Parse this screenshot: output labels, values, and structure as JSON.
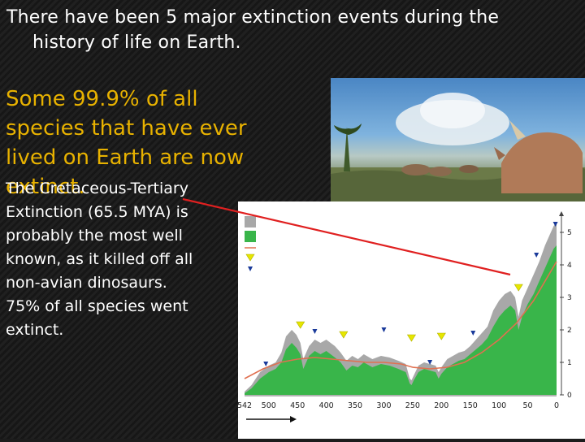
{
  "slide": {
    "title_line1": "There have been 5 major extinction events during the",
    "title_line2": "history of life on Earth.",
    "headline_lines": [
      "Some 99.9% of all",
      "species that have ever",
      "lived on Earth are now",
      "extinct."
    ],
    "body_lines": [
      "The Cretaceous-Tertiary",
      "Extinction (65.5 MYA) is",
      "probably the most well",
      "known, as it killed off all",
      "non-avian dinosaurs.",
      "75% of all species went",
      "extinct."
    ]
  },
  "colors": {
    "background": "#1c1c1c",
    "title_text": "#ffffff",
    "headline_text": "#e8b200",
    "body_text": "#ffffff",
    "connector_line": "#e02020",
    "chart_gray": "#a8a8a8",
    "chart_green": "#39b54a",
    "trend_line": "#e07050",
    "major_marker": "#e6e600",
    "minor_marker": "#1a3a9a"
  },
  "chart_data": {
    "type": "area",
    "x_ticks": [
      "542",
      "500",
      "450",
      "400",
      "350",
      "300",
      "250",
      "200",
      "150",
      "100",
      "50",
      "0"
    ],
    "y_ticks": [
      "0",
      "1",
      "2",
      "3",
      "4",
      "5"
    ],
    "xlim": [
      542,
      0
    ],
    "ylim": [
      0,
      5.5
    ],
    "legend": "left",
    "series": [
      {
        "color": "gray",
        "x": [
          542,
          530,
          515,
          500,
          488,
          478,
          470,
          460,
          452,
          445,
          440,
          430,
          420,
          410,
          400,
          385,
          375,
          365,
          355,
          345,
          335,
          320,
          305,
          290,
          275,
          262,
          255,
          252,
          248,
          240,
          230,
          220,
          210,
          205,
          200,
          190,
          180,
          170,
          160,
          150,
          140,
          130,
          120,
          110,
          100,
          90,
          80,
          72,
          66,
          60,
          50,
          40,
          30,
          20,
          10,
          5,
          0
        ],
        "values": [
          0.1,
          0.3,
          0.7,
          0.9,
          1.0,
          1.3,
          1.8,
          2.0,
          1.85,
          1.6,
          1.1,
          1.5,
          1.7,
          1.6,
          1.7,
          1.5,
          1.3,
          1.05,
          1.2,
          1.1,
          1.25,
          1.1,
          1.2,
          1.15,
          1.05,
          0.95,
          0.5,
          0.45,
          0.6,
          0.9,
          1.0,
          0.95,
          0.9,
          0.7,
          0.85,
          1.1,
          1.2,
          1.3,
          1.35,
          1.5,
          1.7,
          1.9,
          2.1,
          2.6,
          2.9,
          3.1,
          3.2,
          3.0,
          2.4,
          2.9,
          3.3,
          3.7,
          4.1,
          4.6,
          5.0,
          5.2,
          5.3
        ]
      },
      {
        "color": "green",
        "x": [
          542,
          530,
          515,
          500,
          488,
          478,
          470,
          460,
          452,
          445,
          440,
          430,
          420,
          410,
          400,
          385,
          375,
          365,
          355,
          345,
          335,
          320,
          305,
          290,
          275,
          262,
          255,
          252,
          248,
          240,
          230,
          220,
          210,
          205,
          200,
          190,
          180,
          170,
          160,
          150,
          140,
          130,
          120,
          110,
          100,
          90,
          80,
          72,
          66,
          60,
          50,
          40,
          30,
          20,
          10,
          5,
          0
        ],
        "values": [
          0.05,
          0.2,
          0.5,
          0.7,
          0.8,
          1.0,
          1.4,
          1.6,
          1.45,
          1.25,
          0.8,
          1.2,
          1.35,
          1.25,
          1.35,
          1.15,
          1.0,
          0.75,
          0.9,
          0.85,
          1.0,
          0.85,
          0.95,
          0.9,
          0.8,
          0.7,
          0.35,
          0.3,
          0.45,
          0.7,
          0.8,
          0.75,
          0.7,
          0.5,
          0.65,
          0.85,
          0.95,
          1.05,
          1.1,
          1.25,
          1.4,
          1.55,
          1.75,
          2.1,
          2.4,
          2.6,
          2.75,
          2.6,
          2.0,
          2.4,
          2.8,
          3.1,
          3.5,
          3.9,
          4.3,
          4.5,
          4.6
        ]
      },
      {
        "color": "trend",
        "x": [
          542,
          510,
          480,
          450,
          420,
          390,
          360,
          330,
          300,
          270,
          250,
          220,
          190,
          160,
          130,
          100,
          70,
          40,
          10,
          0
        ],
        "values": [
          0.5,
          0.8,
          1.0,
          1.1,
          1.15,
          1.1,
          1.05,
          1.0,
          1.0,
          0.95,
          0.85,
          0.8,
          0.85,
          1.0,
          1.3,
          1.7,
          2.2,
          2.9,
          3.8,
          4.1
        ]
      }
    ],
    "markers": [
      {
        "type": "major",
        "x": 445,
        "y": 2.15
      },
      {
        "type": "major",
        "x": 370,
        "y": 1.85
      },
      {
        "type": "major",
        "x": 252,
        "y": 1.75
      },
      {
        "type": "major",
        "x": 200,
        "y": 1.8
      },
      {
        "type": "major",
        "x": 66,
        "y": 3.3
      },
      {
        "type": "minor",
        "x": 505,
        "y": 0.95
      },
      {
        "type": "minor",
        "x": 420,
        "y": 1.95
      },
      {
        "type": "minor",
        "x": 300,
        "y": 2.0
      },
      {
        "type": "minor",
        "x": 220,
        "y": 1.0
      },
      {
        "type": "minor",
        "x": 145,
        "y": 1.9
      },
      {
        "type": "minor",
        "x": 35,
        "y": 4.3
      },
      {
        "type": "minor",
        "x": 2,
        "y": 5.25
      }
    ]
  }
}
